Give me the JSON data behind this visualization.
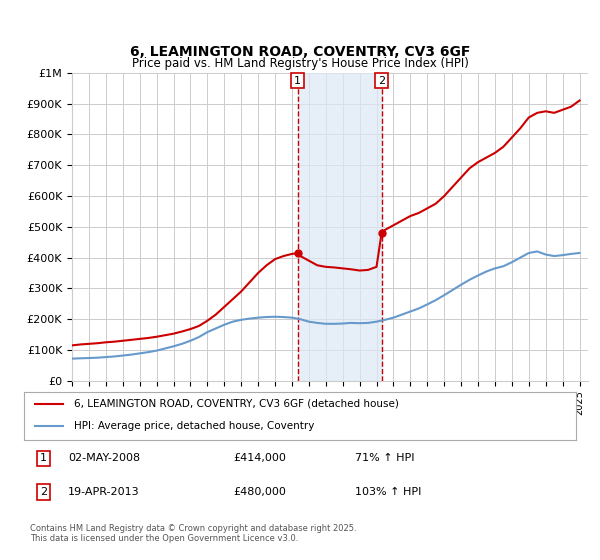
{
  "title": "6, LEAMINGTON ROAD, COVENTRY, CV3 6GF",
  "subtitle": "Price paid vs. HM Land Registry's House Price Index (HPI)",
  "ylabel": "",
  "xlabel": "",
  "ylim": [
    0,
    1000000
  ],
  "yticks": [
    0,
    100000,
    200000,
    300000,
    400000,
    500000,
    600000,
    700000,
    800000,
    900000,
    1000000
  ],
  "ytick_labels": [
    "£0",
    "£100K",
    "£200K",
    "£300K",
    "£400K",
    "£500K",
    "£600K",
    "£700K",
    "£800K",
    "£900K",
    "£1M"
  ],
  "bg_color": "#ffffff",
  "grid_color": "#cccccc",
  "red_line_color": "#cc0000",
  "blue_line_color": "#6699cc",
  "shade_color": "#dce9f5",
  "marker1_x": 2008.33,
  "marker2_x": 2013.3,
  "marker1_price": 414000,
  "marker2_price": 480000,
  "legend_label_red": "6, LEAMINGTON ROAD, COVENTRY, CV3 6GF (detached house)",
  "legend_label_blue": "HPI: Average price, detached house, Coventry",
  "note1": "1    02-MAY-2008         £414,000         71% ↑ HPI",
  "note2": "2    19-APR-2013         £480,000         103% ↑ HPI",
  "footnote": "Contains HM Land Registry data © Crown copyright and database right 2025.\nThis data is licensed under the Open Government Licence v3.0.",
  "xmin": 1995,
  "xmax": 2025.5,
  "red_x": [
    1995,
    1995.5,
    1996,
    1996.5,
    1997,
    1997.5,
    1998,
    1998.5,
    1999,
    1999.5,
    2000,
    2000.5,
    2001,
    2001.5,
    2002,
    2002.5,
    2003,
    2003.5,
    2004,
    2004.5,
    2005,
    2005.5,
    2006,
    2006.5,
    2007,
    2007.5,
    2008,
    2008.33,
    2008.5,
    2009,
    2009.5,
    2010,
    2010.5,
    2011,
    2011.5,
    2012,
    2012.5,
    2013,
    2013.3,
    2013.5,
    2014,
    2014.5,
    2015,
    2015.5,
    2016,
    2016.5,
    2017,
    2017.5,
    2018,
    2018.5,
    2019,
    2019.5,
    2020,
    2020.5,
    2021,
    2021.5,
    2022,
    2022.5,
    2023,
    2023.5,
    2024,
    2024.5,
    2025
  ],
  "red_y": [
    115000,
    118000,
    120000,
    122000,
    125000,
    127000,
    130000,
    133000,
    136000,
    139000,
    143000,
    148000,
    153000,
    160000,
    168000,
    178000,
    195000,
    215000,
    240000,
    265000,
    290000,
    320000,
    350000,
    375000,
    395000,
    405000,
    412000,
    414000,
    405000,
    390000,
    375000,
    370000,
    368000,
    365000,
    362000,
    358000,
    360000,
    370000,
    480000,
    490000,
    505000,
    520000,
    535000,
    545000,
    560000,
    575000,
    600000,
    630000,
    660000,
    690000,
    710000,
    725000,
    740000,
    760000,
    790000,
    820000,
    855000,
    870000,
    875000,
    870000,
    880000,
    890000,
    910000
  ],
  "blue_x": [
    1995,
    1995.5,
    1996,
    1996.5,
    1997,
    1997.5,
    1998,
    1998.5,
    1999,
    1999.5,
    2000,
    2000.5,
    2001,
    2001.5,
    2002,
    2002.5,
    2003,
    2003.5,
    2004,
    2004.5,
    2005,
    2005.5,
    2006,
    2006.5,
    2007,
    2007.5,
    2008,
    2008.5,
    2009,
    2009.5,
    2010,
    2010.5,
    2011,
    2011.5,
    2012,
    2012.5,
    2013,
    2013.5,
    2014,
    2014.5,
    2015,
    2015.5,
    2016,
    2016.5,
    2017,
    2017.5,
    2018,
    2018.5,
    2019,
    2019.5,
    2020,
    2020.5,
    2021,
    2021.5,
    2022,
    2022.5,
    2023,
    2023.5,
    2024,
    2024.5,
    2025
  ],
  "blue_y": [
    72000,
    73000,
    74000,
    75000,
    77000,
    79000,
    82000,
    85000,
    89000,
    93000,
    98000,
    105000,
    112000,
    120000,
    130000,
    142000,
    158000,
    170000,
    182000,
    192000,
    198000,
    202000,
    205000,
    207000,
    208000,
    207000,
    205000,
    200000,
    192000,
    188000,
    185000,
    185000,
    186000,
    188000,
    187000,
    188000,
    192000,
    198000,
    205000,
    215000,
    225000,
    235000,
    248000,
    262000,
    278000,
    295000,
    312000,
    328000,
    342000,
    355000,
    365000,
    372000,
    385000,
    400000,
    415000,
    420000,
    410000,
    405000,
    408000,
    412000,
    415000
  ]
}
